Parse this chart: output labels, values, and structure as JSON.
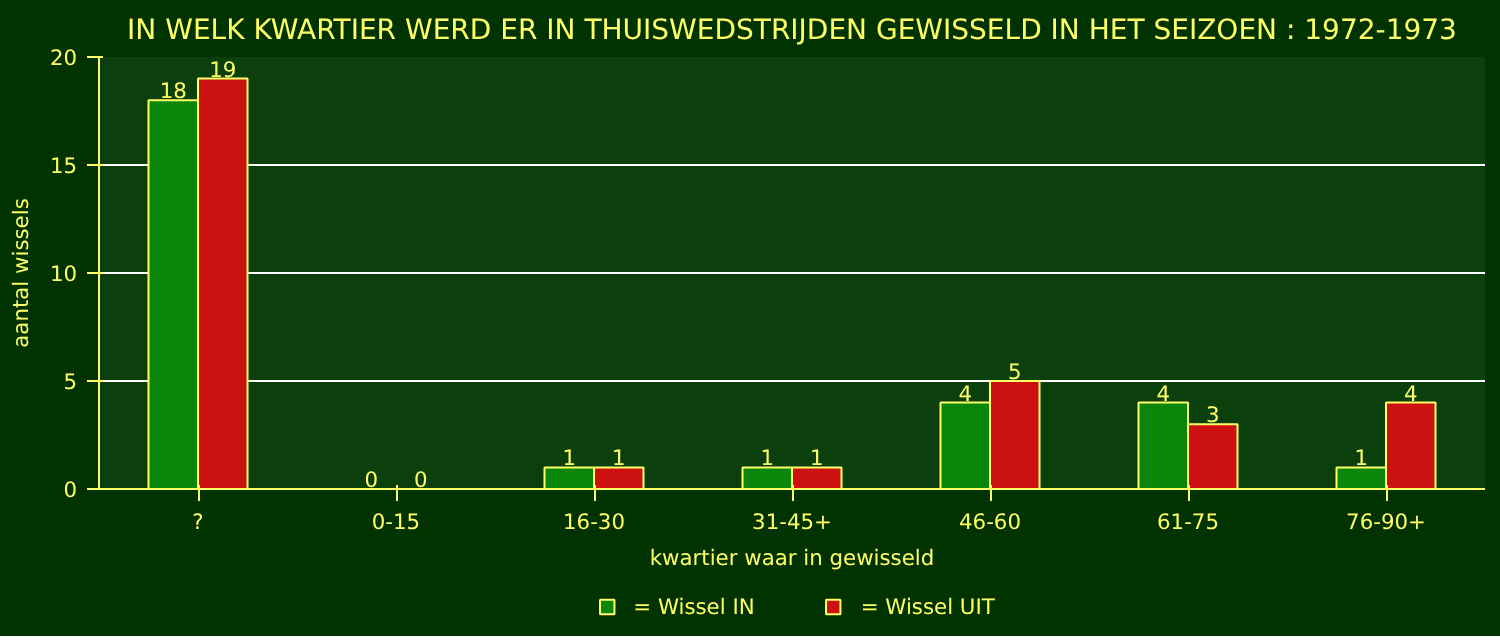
{
  "chart_data": {
    "type": "bar",
    "title": "IN WELK KWARTIER WERD ER IN THUISWEDSTRIJDEN GEWISSELD IN HET SEIZOEN : 1972-1973",
    "xlabel": "kwartier waar in gewisseld",
    "ylabel": "aantal wissels",
    "categories": [
      "?",
      "0-15",
      "16-30",
      "31-45+",
      "46-60",
      "61-75",
      "76-90+"
    ],
    "series": [
      {
        "name": "= Wissel IN",
        "color": "#0a860a",
        "values": [
          18,
          0,
          1,
          1,
          4,
          4,
          1
        ]
      },
      {
        "name": "= Wissel UIT",
        "color": "#cc1111",
        "values": [
          19,
          0,
          1,
          1,
          5,
          3,
          4
        ]
      }
    ],
    "ylim": [
      0,
      20
    ],
    "yticks": [
      0,
      5,
      10,
      15,
      20
    ],
    "grid": "y",
    "legend": "bottom",
    "data_labels": true
  }
}
